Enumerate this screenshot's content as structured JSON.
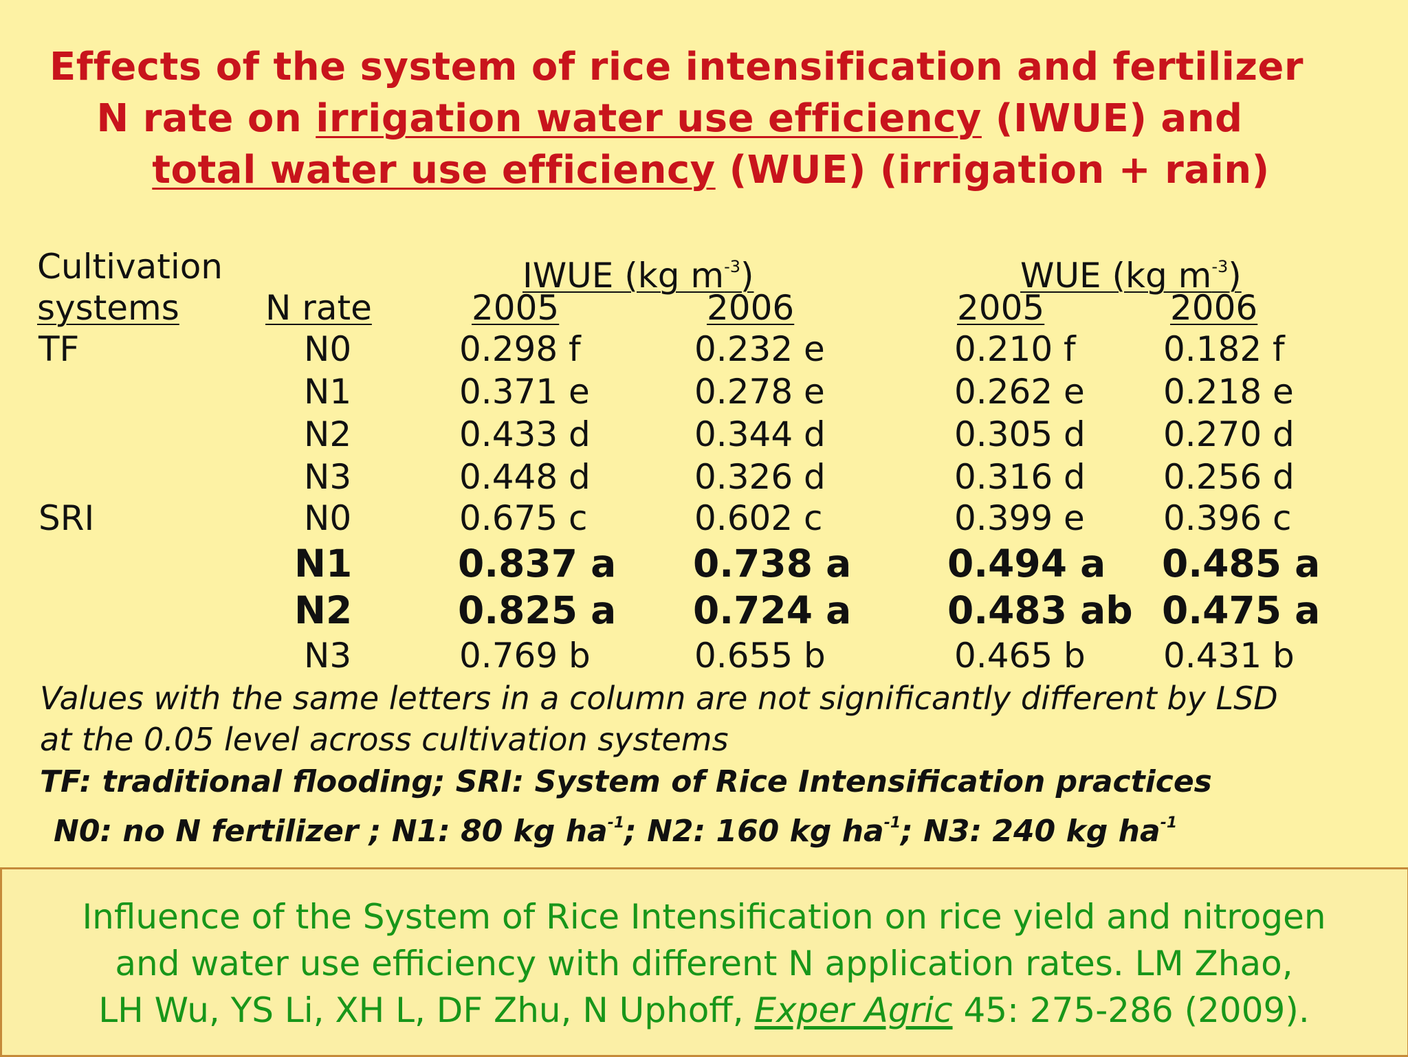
{
  "title": {
    "line1": "Effects of the system of rice intensification and fertilizer",
    "line2_pre": "N rate on ",
    "line2_link": "irrigation water use efficiency",
    "line2_post": " (IWUE) and",
    "line3_link": "total water use efficiency",
    "line3_post": " (WUE) (irrigation + rain)"
  },
  "table": {
    "col_system_top": "Cultivation",
    "col_system_bottom": "systems",
    "col_nrate": "N rate",
    "iwue_label": "IWUE (kg m",
    "wue_label": "WUE (kg m",
    "exp": "-3",
    "close_paren": ")",
    "years": [
      "2005",
      "2006",
      "2005",
      "2006"
    ],
    "rows": [
      {
        "system": "TF",
        "n": "N0",
        "v": [
          "0.298 f",
          "0.232 e",
          "0.210 f",
          "0.182 f"
        ]
      },
      {
        "system": "",
        "n": "N1",
        "v": [
          "0.371 e",
          "0.278 e",
          "0.262 e",
          "0.218 e"
        ]
      },
      {
        "system": "",
        "n": "N2",
        "v": [
          "0.433 d",
          "0.344 d",
          "0.305 d",
          "0.270 d"
        ]
      },
      {
        "system": "",
        "n": "N3",
        "v": [
          "0.448 d",
          "0.326 d",
          "0.316 d",
          "0.256 d"
        ]
      },
      {
        "system": "SRI",
        "n": "N0",
        "v": [
          "0.675 c",
          "0.602 c",
          "0.399 e",
          "0.396 c"
        ]
      },
      {
        "system": "",
        "n": "N1",
        "v": [
          "0.837 a",
          "0.738 a",
          "0.494 a",
          "0.485 a"
        ]
      },
      {
        "system": "",
        "n": "N2",
        "v": [
          "0.825 a",
          "0.724 a",
          "0.483 ab",
          "0.475 a"
        ]
      },
      {
        "system": "",
        "n": "N3",
        "v": [
          "0.769 b",
          "0.655 b",
          "0.465 b",
          "0.431 b"
        ]
      }
    ]
  },
  "notes": {
    "line1": "Values with the same letters in a column are not significantly different by LSD",
    "line2": "at the 0.05 level across cultivation systems",
    "line3": "TF: traditional flooding;    SRI: System of Rice Intensification practices",
    "n0": "N0: no N fertilizer ;  ",
    "n1": "N1: 80 kg ha",
    "n2": "N2: 160 kg ha",
    "n3": "N3: 240 kg ha",
    "exp": "-1",
    "sep": ";  "
  },
  "citation": {
    "line1": "Influence of the System of Rice Intensification on rice yield and nitrogen",
    "line2": "and water use efficiency with different N application rates.  LM Zhao,",
    "line3_pre": "LH Wu, YS Li, XH L, DF Zhu, N Uphoff, ",
    "journal": "Exper Agric",
    "line3_post": " 45: 275-286 (2009)."
  },
  "colors": {
    "background": "#fdf2a4",
    "title": "#c8141c",
    "citation": "#18961a",
    "box_border": "#c58a3a"
  }
}
